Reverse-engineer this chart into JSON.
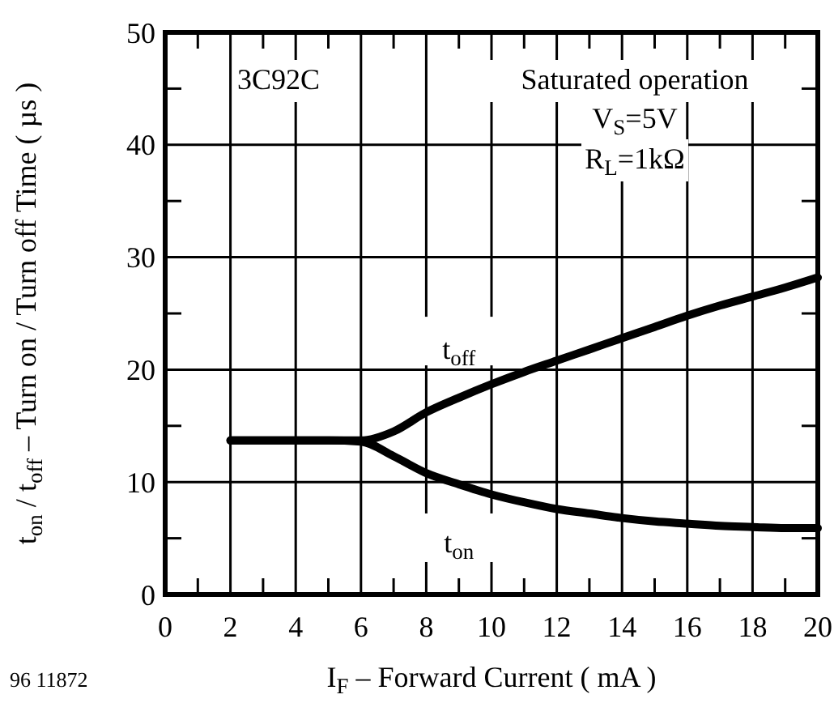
{
  "chart_data": {
    "type": "line",
    "xlabel": "I$_{F}$ – Forward Current ( mA )",
    "ylabel": "t$_{on}$ / t$_{off}$  – Turn on / Turn off Time ( µs )",
    "x": [
      2,
      3,
      4,
      5,
      6,
      7,
      8,
      9,
      10,
      11,
      12,
      13,
      14,
      15,
      16,
      17,
      18,
      19,
      20
    ],
    "series": [
      {
        "name": "t$_{off}$",
        "color": "#000000",
        "values": [
          13.7,
          13.7,
          13.7,
          13.7,
          13.7,
          14.5,
          16.2,
          17.5,
          18.7,
          19.8,
          20.8,
          21.8,
          22.8,
          23.8,
          24.8,
          25.7,
          26.5,
          27.3,
          28.2
        ]
      },
      {
        "name": "t$_{on}$",
        "color": "#000000",
        "values": [
          13.7,
          13.7,
          13.7,
          13.7,
          13.6,
          12.3,
          10.8,
          9.8,
          8.9,
          8.2,
          7.6,
          7.2,
          6.8,
          6.5,
          6.3,
          6.1,
          6.0,
          5.9,
          5.9
        ]
      }
    ],
    "xlim": [
      0,
      20
    ],
    "ylim": [
      0,
      50
    ],
    "xticks": [
      0,
      {
        "value": 1,
        "label": null
      },
      2,
      {
        "value": 3,
        "label": null
      },
      4,
      {
        "value": 5,
        "label": null
      },
      6,
      {
        "value": 7,
        "label": null
      },
      8,
      {
        "value": 9,
        "label": null
      },
      10,
      {
        "value": 11,
        "label": null
      },
      12,
      {
        "value": 13,
        "label": null
      },
      14,
      {
        "value": 15,
        "label": null
      },
      16,
      {
        "value": 17,
        "label": null
      },
      18,
      {
        "value": 19,
        "label": null
      },
      20
    ],
    "yticks": [
      0,
      {
        "value": 5,
        "label": null
      },
      10,
      {
        "value": 15,
        "label": null
      },
      20,
      {
        "value": 25,
        "label": null
      },
      30,
      {
        "value": 35,
        "label": null
      },
      40,
      {
        "value": 45,
        "label": null
      },
      50
    ],
    "grid": true,
    "marker": "none",
    "line_style": "solid",
    "annotations": [
      "3C92C",
      "Saturated operation",
      "V$_{S}$=5V",
      "R$_{L}$=1kΩ",
      "96 11872"
    ]
  }
}
